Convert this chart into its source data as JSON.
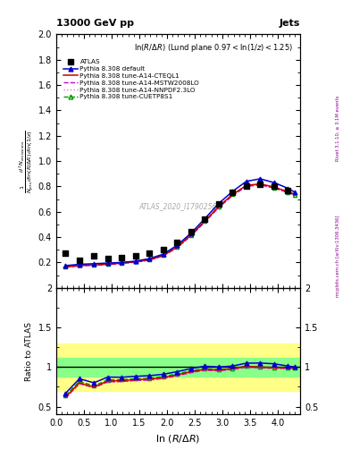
{
  "title_left": "13000 GeV pp",
  "title_right": "Jets",
  "panel_title": "ln(R/Δ R) (Lund plane 0.97<ln(1/z)<1.25)",
  "watermark": "ATLAS_2020_I1790256",
  "ylabel_ratio": "Ratio to ATLAS",
  "xlabel": "ln (R/Δ R)",
  "right_label_top": "Rivet 3.1.10, ≥ 3.1M events",
  "right_label_bot": "mcplots.cern.ch [arXiv:1306.3436]",
  "x_atlas": [
    0.17,
    0.42,
    0.68,
    0.93,
    1.18,
    1.43,
    1.68,
    1.93,
    2.18,
    2.43,
    2.68,
    2.93,
    3.18,
    3.43,
    3.68,
    3.93,
    4.18
  ],
  "y_atlas": [
    0.27,
    0.22,
    0.25,
    0.23,
    0.24,
    0.25,
    0.27,
    0.3,
    0.36,
    0.44,
    0.54,
    0.66,
    0.75,
    0.8,
    0.82,
    0.8,
    0.77
  ],
  "x_mc": [
    0.17,
    0.42,
    0.68,
    0.93,
    1.18,
    1.43,
    1.68,
    1.93,
    2.18,
    2.43,
    2.68,
    2.93,
    3.18,
    3.43,
    3.68,
    3.93,
    4.18,
    4.3
  ],
  "y_default": [
    0.175,
    0.185,
    0.19,
    0.195,
    0.2,
    0.21,
    0.23,
    0.265,
    0.335,
    0.43,
    0.545,
    0.665,
    0.76,
    0.84,
    0.86,
    0.83,
    0.785,
    0.755
  ],
  "y_cteql1": [
    0.165,
    0.175,
    0.18,
    0.185,
    0.195,
    0.205,
    0.22,
    0.255,
    0.32,
    0.415,
    0.525,
    0.64,
    0.735,
    0.808,
    0.82,
    0.795,
    0.758,
    0.738
  ],
  "y_mstw": [
    0.163,
    0.173,
    0.178,
    0.183,
    0.192,
    0.202,
    0.218,
    0.252,
    0.316,
    0.41,
    0.518,
    0.632,
    0.727,
    0.8,
    0.812,
    0.787,
    0.752,
    0.732
  ],
  "y_nnpdf": [
    0.163,
    0.173,
    0.178,
    0.183,
    0.192,
    0.202,
    0.218,
    0.252,
    0.316,
    0.41,
    0.518,
    0.632,
    0.727,
    0.8,
    0.812,
    0.787,
    0.752,
    0.732
  ],
  "y_cuetp": [
    0.168,
    0.178,
    0.183,
    0.188,
    0.197,
    0.207,
    0.223,
    0.257,
    0.322,
    0.416,
    0.526,
    0.641,
    0.736,
    0.806,
    0.817,
    0.791,
    0.755,
    0.735
  ],
  "ratio_default": [
    0.668,
    0.852,
    0.8,
    0.872,
    0.87,
    0.882,
    0.89,
    0.908,
    0.94,
    0.98,
    1.01,
    1.0,
    1.012,
    1.048,
    1.05,
    1.04,
    1.012,
    1.0
  ],
  "ratio_cteql1": [
    0.62,
    0.8,
    0.745,
    0.822,
    0.826,
    0.84,
    0.845,
    0.865,
    0.9,
    0.94,
    0.97,
    0.96,
    0.978,
    1.008,
    0.998,
    0.992,
    0.988,
    0.986
  ],
  "ratio_mstw": [
    0.61,
    0.79,
    0.74,
    0.812,
    0.816,
    0.83,
    0.835,
    0.856,
    0.89,
    0.93,
    0.96,
    0.952,
    0.97,
    0.998,
    0.99,
    0.984,
    0.982,
    0.978
  ],
  "ratio_nnpdf": [
    0.608,
    0.788,
    0.738,
    0.81,
    0.814,
    0.828,
    0.833,
    0.854,
    0.888,
    0.928,
    0.958,
    0.95,
    0.968,
    0.996,
    0.988,
    0.982,
    0.98,
    0.976
  ],
  "ratio_cuetp": [
    0.64,
    0.82,
    0.76,
    0.838,
    0.84,
    0.852,
    0.858,
    0.878,
    0.912,
    0.952,
    0.978,
    0.964,
    0.982,
    1.01,
    1.0,
    0.994,
    0.992,
    0.99
  ],
  "band_x": [
    0.0,
    0.17,
    0.5,
    1.0,
    1.5,
    2.0,
    2.5,
    3.0,
    3.5,
    4.0,
    4.4
  ],
  "band_green_lo": [
    0.88,
    0.88,
    0.88,
    0.88,
    0.88,
    0.88,
    0.88,
    0.88,
    0.88,
    0.88,
    0.88
  ],
  "band_green_hi": [
    1.12,
    1.12,
    1.12,
    1.12,
    1.12,
    1.12,
    1.12,
    1.12,
    1.12,
    1.12,
    1.12
  ],
  "band_yellow_lo": [
    0.7,
    0.7,
    0.7,
    0.7,
    0.7,
    0.7,
    0.7,
    0.7,
    0.7,
    0.7,
    0.7
  ],
  "band_yellow_hi": [
    1.3,
    1.3,
    1.3,
    1.3,
    1.3,
    1.3,
    1.3,
    1.3,
    1.3,
    1.3,
    1.3
  ],
  "color_default": "#0000cc",
  "color_cteql1": "#cc0000",
  "color_mstw": "#cc00cc",
  "color_nnpdf": "#ff66cc",
  "color_cuetp": "#009900",
  "ylim_main": [
    0.0,
    2.0
  ],
  "ylim_ratio": [
    0.4,
    2.0
  ],
  "xlim": [
    0.0,
    4.4
  ],
  "yticks_main": [
    0.2,
    0.4,
    0.6,
    0.8,
    1.0,
    1.2,
    1.4,
    1.6,
    1.8,
    2.0
  ],
  "yticks_ratio": [
    0.5,
    1.0,
    1.5,
    2.0
  ]
}
